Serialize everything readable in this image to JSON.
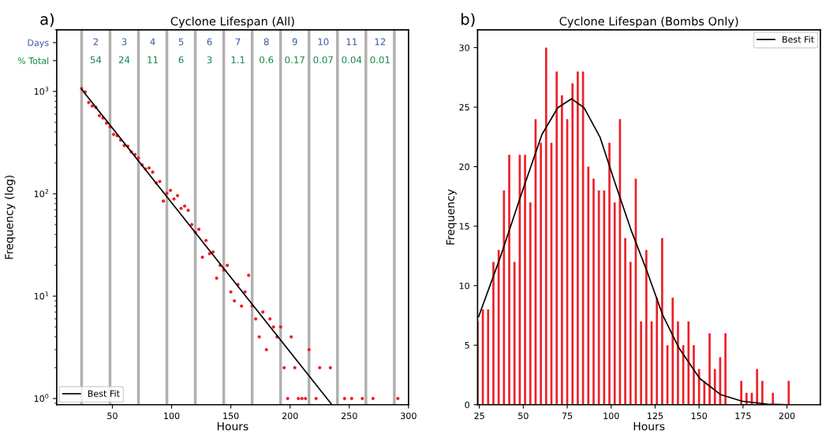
{
  "chart_data": [
    {
      "type": "scatter",
      "title": "Cyclone Lifespan (All)",
      "xlabel": "Hours",
      "ylabel": "Frequency (log)",
      "series": [
        {
          "color": "#ee2027",
          "marker": "circle",
          "x": [
            24,
            27,
            30,
            33,
            36,
            39,
            42,
            45,
            48,
            51,
            54,
            57,
            60,
            63,
            66,
            69,
            72,
            75,
            78,
            81,
            84,
            87,
            90,
            93,
            96,
            99,
            102,
            105,
            108,
            111,
            114,
            117,
            120,
            123,
            126,
            129,
            132,
            135,
            138,
            141,
            144,
            147,
            150,
            153,
            156,
            159,
            162,
            165,
            168,
            171,
            174,
            177,
            180,
            183,
            186,
            189,
            192,
            195,
            198,
            201,
            204,
            207,
            210,
            213,
            216,
            222,
            225,
            234,
            246,
            252,
            261,
            270,
            291
          ],
          "values": [
            1070,
            990,
            780,
            720,
            700,
            580,
            550,
            490,
            450,
            380,
            370,
            335,
            296,
            292,
            257,
            242,
            224,
            192,
            175,
            179,
            163,
            128,
            132,
            85,
            101,
            108,
            89,
            96,
            72,
            76,
            69,
            50,
            42,
            45,
            24,
            35,
            26,
            27,
            15,
            20,
            18,
            20,
            11,
            9,
            13,
            8,
            11,
            16,
            8,
            6,
            4,
            7,
            3,
            6,
            5,
            4,
            5,
            2,
            1,
            4,
            2,
            1,
            1,
            1,
            3,
            1,
            2,
            2,
            1,
            1,
            1,
            1,
            1
          ]
        },
        {
          "type": "line",
          "name": "Best Fit",
          "color": "#000000",
          "marker": "none",
          "x": [
            24,
            235
          ],
          "values": [
            1050,
            0.88
          ]
        }
      ],
      "log": "y",
      "xlim": [
        3,
        300
      ],
      "xticks": [
        50,
        100,
        150,
        200,
        250,
        300
      ],
      "ylim": [
        0.87,
        4000
      ],
      "yticks": [
        {
          "value": 1,
          "label": "10$^{0}$"
        },
        {
          "value": 10,
          "label": "10$^{1}$"
        },
        {
          "value": 100,
          "label": "10$^{2}$"
        },
        {
          "value": 1000,
          "label": "10$^{3}$"
        },
        {
          "value": 2000,
          "label": "% Total"
        },
        {
          "value": 3000,
          "label": "Days"
        }
      ],
      "grid": false,
      "legend": "bottom left",
      "ref_lines": [
        {
          "axis": "x",
          "value": 24,
          "color": "#b0b0b0"
        },
        {
          "axis": "x",
          "value": 48,
          "color": "#b0b0b0"
        },
        {
          "axis": "x",
          "value": 72,
          "color": "#b0b0b0"
        },
        {
          "axis": "x",
          "value": 96,
          "color": "#b0b0b0"
        },
        {
          "axis": "x",
          "value": 120,
          "color": "#b0b0b0"
        },
        {
          "axis": "x",
          "value": 144,
          "color": "#b0b0b0"
        },
        {
          "axis": "x",
          "value": 168,
          "color": "#b0b0b0"
        },
        {
          "axis": "x",
          "value": 192,
          "color": "#b0b0b0"
        },
        {
          "axis": "x",
          "value": 216,
          "color": "#b0b0b0"
        },
        {
          "axis": "x",
          "value": 240,
          "color": "#b0b0b0"
        },
        {
          "axis": "x",
          "value": 264,
          "color": "#b0b0b0"
        },
        {
          "axis": "x",
          "value": 288,
          "color": "#b0b0b0"
        }
      ],
      "annotations": [
        "a)",
        "2",
        "3",
        "4",
        "5",
        "6",
        "7",
        "8",
        "9",
        "10",
        "11",
        "12",
        "54",
        "24",
        "11",
        "6",
        "3",
        "1.1",
        "0.6",
        "0.17",
        "0.07",
        "0.04",
        "0.01"
      ]
    },
    {
      "type": "bar",
      "title": "Cyclone Lifespan (Bombs Only)",
      "xlabel": "Hours",
      "ylabel": "Frequency",
      "series": [
        {
          "color": "#ee2027",
          "x": [
            24,
            27,
            30,
            33,
            36,
            39,
            42,
            45,
            48,
            51,
            54,
            57,
            60,
            63,
            66,
            69,
            72,
            75,
            78,
            81,
            84,
            87,
            90,
            93,
            96,
            99,
            102,
            105,
            108,
            111,
            114,
            117,
            120,
            123,
            126,
            129,
            132,
            135,
            138,
            141,
            144,
            147,
            150,
            153,
            156,
            159,
            162,
            165,
            168,
            171,
            174,
            177,
            180,
            183,
            186,
            189,
            192,
            195,
            198,
            201
          ],
          "values": [
            7,
            8,
            8,
            12,
            13,
            18,
            21,
            12,
            21,
            21,
            17,
            24,
            22,
            30,
            22,
            28,
            26,
            24,
            27,
            28,
            28,
            20,
            19,
            18,
            18,
            22,
            17,
            24,
            14,
            12,
            19,
            7,
            13,
            7,
            9,
            14,
            5,
            9,
            7,
            5,
            7,
            5,
            3,
            2,
            6,
            3,
            4,
            6,
            0,
            0,
            2,
            1,
            1,
            3,
            2,
            0,
            1,
            0,
            0,
            2
          ]
        },
        {
          "type": "line",
          "name": "Best Fit",
          "color": "#000000",
          "marker": "none",
          "x": [
            24.6,
            36.7,
            48.7,
            60.6,
            69.6,
            77.4,
            84.6,
            93.6,
            102.5,
            111.5,
            120.4,
            129.4,
            138.4,
            150.4,
            162.4,
            174.4,
            189,
            201.3
          ],
          "values": [
            7.4,
            12.3,
            17.6,
            22.7,
            24.95,
            25.7,
            24.95,
            22.5,
            18.5,
            14.6,
            11.2,
            7.5,
            4.8,
            2.2,
            0.84,
            0.3,
            0.05,
            0
          ]
        }
      ],
      "xlim": [
        24,
        219
      ],
      "xticks": [
        25,
        50,
        75,
        100,
        125,
        150,
        175,
        200
      ],
      "ylim": [
        0,
        31.5
      ],
      "yticks": [
        0,
        5,
        10,
        15,
        20,
        25,
        30
      ],
      "grid": false,
      "legend": "top right",
      "annotations": [
        "b)"
      ]
    }
  ]
}
